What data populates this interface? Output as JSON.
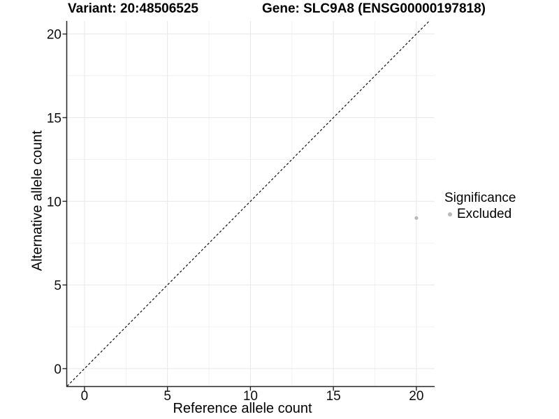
{
  "chart_data": {
    "type": "scatter",
    "titles": {
      "left": "Variant: 20:48506525",
      "right": "Gene: SLC9A8 (ENSG00000197818)"
    },
    "xlabel": "Reference allele count",
    "ylabel": "Alternative allele count",
    "xlim": [
      -1.05,
      21.1
    ],
    "ylim": [
      -1.05,
      20.78
    ],
    "x_ticks": [
      0,
      5,
      10,
      15,
      20
    ],
    "y_ticks": [
      0,
      5,
      10,
      15,
      20
    ],
    "x_minor_ticks": [
      2.5,
      7.5,
      12.5,
      17.5
    ],
    "y_minor_ticks": [
      2.5,
      7.5,
      12.5,
      17.5
    ],
    "grid": "major and minor light-gray gridlines on white background",
    "points": [
      {
        "x": 20,
        "y": 9,
        "series": "Excluded"
      }
    ],
    "reference_line": {
      "type": "identity y=x",
      "style": "dashed",
      "color": "#111111"
    },
    "legend": {
      "title": "Significance",
      "position": "right",
      "entries": [
        {
          "label": "Excluded",
          "color": "#b9b9b9"
        }
      ]
    },
    "colors": {
      "point_excluded": "#b9b9b9",
      "grid_major": "#e7e7e7",
      "grid_minor": "#f1f1f1",
      "axis_line": "#262626",
      "tick_label": "#0d0d0d",
      "text": "#000000",
      "background": "#ffffff"
    }
  }
}
